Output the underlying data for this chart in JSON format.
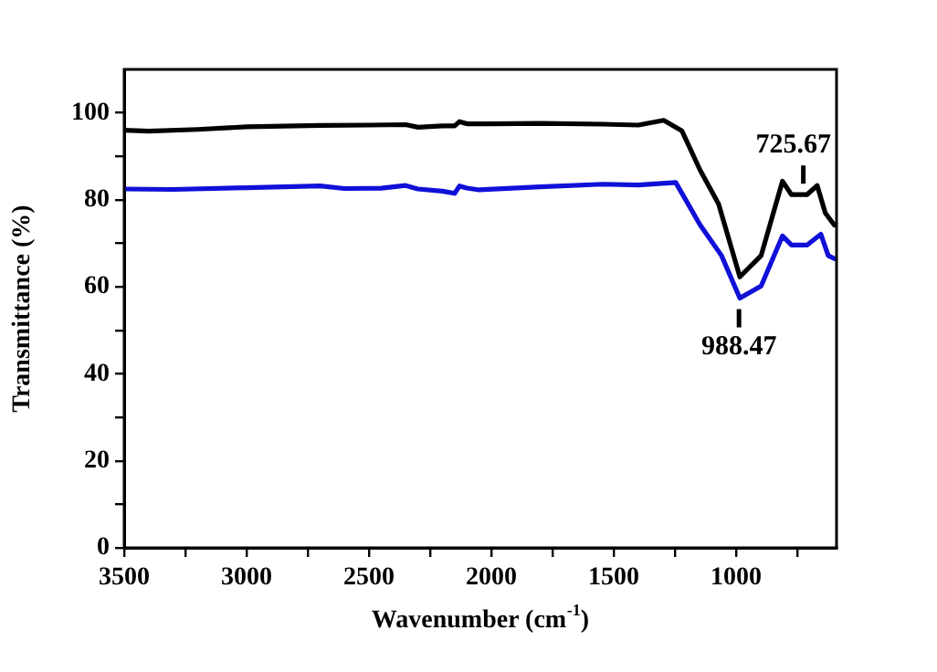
{
  "chart_data": {
    "type": "line",
    "xlabel": "Wavenumber (cm$^{-1}$)",
    "ylabel": "Transmittance (%)",
    "xlim": [
      3500,
      590
    ],
    "ylim": [
      0,
      110
    ],
    "xticks": [
      3500,
      {
        "value": 3250,
        "label": null
      },
      3000,
      {
        "value": 2750,
        "label": null
      },
      2500,
      {
        "value": 2250,
        "label": null
      },
      2000,
      {
        "value": 1750,
        "label": null
      },
      1500,
      {
        "value": 1250,
        "label": null
      },
      1000,
      {
        "value": 750,
        "label": null
      }
    ],
    "yticks": [
      0,
      {
        "value": 10,
        "label": null
      },
      20,
      {
        "value": 30,
        "label": null
      },
      40,
      {
        "value": 50,
        "label": null
      },
      60,
      {
        "value": 70,
        "label": null
      },
      80,
      {
        "value": 90,
        "label": null
      },
      100
    ],
    "grid": false,
    "legend": false,
    "marker": "none",
    "line_style": "solid",
    "series": [
      {
        "color": "#000000",
        "x": [
          3500,
          3400,
          3200,
          3000,
          2700,
          2500,
          2350,
          2300,
          2200,
          2150,
          2130,
          2100,
          2000,
          1800,
          1545,
          1400,
          1296,
          1222,
          1147,
          1072,
          985,
          898,
          811,
          774,
          711,
          669,
          636,
          599
        ],
        "values": [
          96,
          95.8,
          96.2,
          96.8,
          97.1,
          97.2,
          97.3,
          96.7,
          97,
          97,
          98,
          97.5,
          97.5,
          97.6,
          97.4,
          97.2,
          98.3,
          95.9,
          86.8,
          79.1,
          62.3,
          67.2,
          84.3,
          81.2,
          81.2,
          83.3,
          77,
          74.2
        ]
      },
      {
        "color": "#1010d8",
        "x": [
          3500,
          3300,
          3000,
          2700,
          2600,
          2450,
          2350,
          2300,
          2200,
          2150,
          2130,
          2100,
          2050,
          1800,
          1545,
          1400,
          1247,
          1147,
          1060,
          985,
          898,
          811,
          774,
          711,
          654,
          624,
          599
        ],
        "values": [
          82.5,
          82.4,
          82.8,
          83.2,
          82.6,
          82.7,
          83.3,
          82.5,
          82,
          81.5,
          83.2,
          82.7,
          82.3,
          83,
          83.6,
          83.4,
          84,
          74.2,
          67.2,
          57.4,
          60.2,
          71.7,
          69.6,
          69.6,
          72.1,
          67.2,
          66.5
        ]
      }
    ],
    "annotations": [
      {
        "text": "725.67",
        "x": 725.67,
        "y": 81.2
      },
      {
        "text": "988.47",
        "x": 988.47,
        "y": 57.4
      }
    ]
  }
}
